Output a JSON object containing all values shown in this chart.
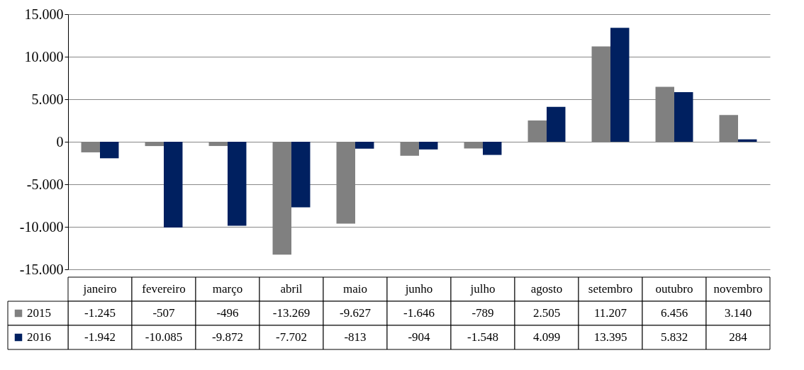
{
  "chart_data": {
    "type": "bar",
    "categories": [
      "janeiro",
      "fevereiro",
      "março",
      "abril",
      "maio",
      "junho",
      "julho",
      "agosto",
      "setembro",
      "outubro",
      "novembro"
    ],
    "series": [
      {
        "name": "2015",
        "color": "#808080",
        "values": [
          -1245,
          -507,
          -496,
          -13269,
          -9627,
          -1646,
          -789,
          2505,
          11207,
          6456,
          3140
        ],
        "value_labels": [
          "-1.245",
          "-507",
          "-496",
          "-13.269",
          "-9.627",
          "-1.646",
          "-789",
          "2.505",
          "11.207",
          "6.456",
          "3.140"
        ]
      },
      {
        "name": "2016",
        "color": "#002060",
        "values": [
          -1942,
          -10085,
          -9872,
          -7702,
          -813,
          -904,
          -1548,
          4099,
          13395,
          5832,
          284
        ],
        "value_labels": [
          "-1.942",
          "-10.085",
          "-9.872",
          "-7.702",
          "-813",
          "-904",
          "-1.548",
          "4.099",
          "13.395",
          "5.832",
          "284"
        ]
      }
    ],
    "ylim": [
      -15000,
      15000
    ],
    "yticks": [
      {
        "value": -15000,
        "label": "-15.000"
      },
      {
        "value": -10000,
        "label": "-10.000"
      },
      {
        "value": -5000,
        "label": "-5.000"
      },
      {
        "value": 0,
        "label": "0"
      },
      {
        "value": 5000,
        "label": "5.000"
      },
      {
        "value": 10000,
        "label": "10.000"
      },
      {
        "value": 15000,
        "label": "15.000"
      }
    ],
    "grid": "y",
    "legend": "bottom"
  }
}
